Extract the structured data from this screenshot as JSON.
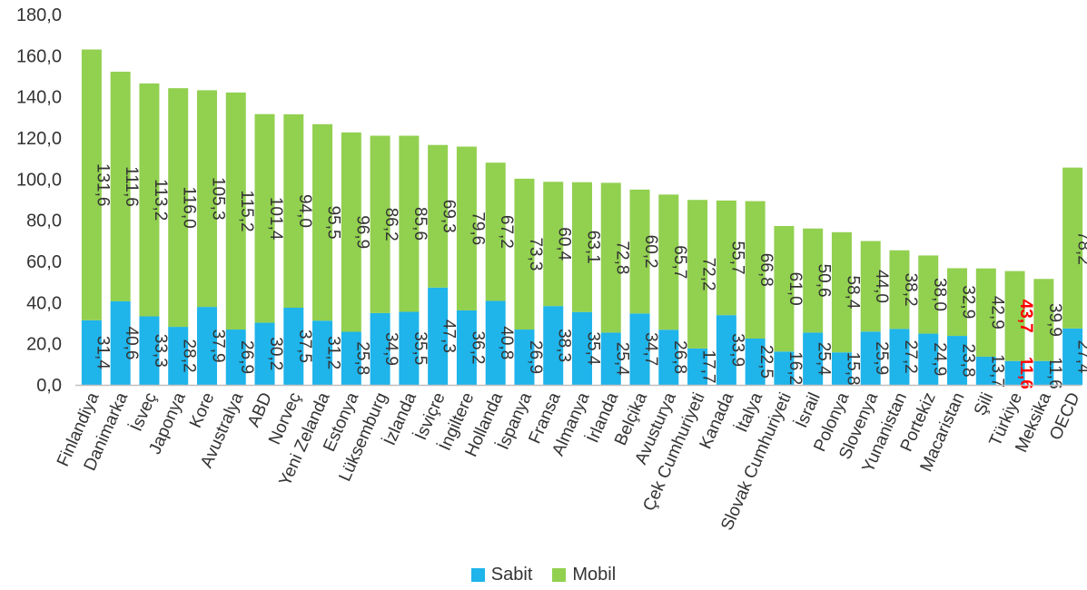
{
  "chart_data": {
    "type": "bar",
    "stacked": true,
    "title": "",
    "xlabel": "",
    "ylabel": "",
    "ylim": [
      0,
      180
    ],
    "yticks": [
      "0,0",
      "20,0",
      "40,0",
      "60,0",
      "80,0",
      "100,0",
      "120,0",
      "140,0",
      "160,0",
      "180,0"
    ],
    "grid": false,
    "legend_position": "bottom",
    "categories": [
      "Finlandiya",
      "Danimarka",
      "İsveç",
      "Japonya",
      "Kore",
      "Avustralya",
      "ABD",
      "Norveç",
      "Yeni Zelanda",
      "Estonya",
      "Lüksemburg",
      "İzlanda",
      "İsviçre",
      "İngiltere",
      "Hollanda",
      "İspanya",
      "Fransa",
      "Almanya",
      "İrlanda",
      "Belçika",
      "Avusturya",
      "Çek Cumhuriyeti",
      "Kanada",
      "İtalya",
      "Slovak Cumhuriyeti",
      "İsrail",
      "Polonya",
      "Slovenya",
      "Yunanistan",
      "Portekiz",
      "Macaristan",
      "Şili",
      "Türkiye",
      "Meksika",
      "OECD"
    ],
    "series": [
      {
        "name": "Sabit",
        "color": "#1fb4ea",
        "values": [
          31.4,
          40.6,
          33.3,
          28.2,
          37.9,
          26.9,
          30.2,
          37.5,
          31.2,
          25.8,
          34.9,
          35.5,
          47.3,
          36.2,
          40.8,
          26.9,
          38.3,
          35.4,
          25.4,
          34.7,
          26.8,
          17.7,
          33.9,
          22.5,
          16.2,
          25.4,
          15.8,
          25.9,
          27.2,
          24.9,
          23.8,
          13.7,
          11.6,
          11.6,
          27.4
        ],
        "labels": [
          "31,4",
          "40,6",
          "33,3",
          "28,2",
          "37,9",
          "26,9",
          "30,2",
          "37,5",
          "31,2",
          "25,8",
          "34,9",
          "35,5",
          "47,3",
          "36,2",
          "40,8",
          "26,9",
          "38,3",
          "35,4",
          "25,4",
          "34,7",
          "26,8",
          "17,7",
          "33,9",
          "22,5",
          "16,2",
          "25,4",
          "15,8",
          "25,9",
          "27,2",
          "24,9",
          "23,8",
          "13,7",
          "11,6",
          "11,6",
          "27,4"
        ]
      },
      {
        "name": "Mobil",
        "color": "#92d050",
        "values": [
          131.6,
          111.6,
          113.2,
          116.0,
          105.3,
          115.2,
          101.4,
          94.0,
          95.5,
          96.9,
          86.2,
          85.6,
          69.3,
          79.6,
          67.2,
          73.3,
          60.4,
          63.1,
          72.8,
          60.2,
          65.7,
          72.2,
          55.7,
          66.8,
          61.0,
          50.6,
          58.4,
          44.0,
          38.2,
          38.0,
          32.9,
          42.9,
          43.7,
          39.9,
          78.2
        ],
        "labels": [
          "131,6",
          "111,6",
          "113,2",
          "116,0",
          "105,3",
          "115,2",
          "101,4",
          "94,0",
          "95,5",
          "96,9",
          "86,2",
          "85,6",
          "69,3",
          "79,6",
          "67,2",
          "73,3",
          "60,4",
          "63,1",
          "72,8",
          "60,2",
          "65,7",
          "72,2",
          "55,7",
          "66,8",
          "61,0",
          "50,6",
          "58,4",
          "44,0",
          "38,2",
          "38,0",
          "32,9",
          "42,9",
          "43,7",
          "39,9",
          "78,2"
        ]
      }
    ],
    "highlight": {
      "category": "Türkiye",
      "label_color": "#ff0000"
    },
    "label_color": "#333333",
    "axis_color": "#bfbfbf"
  }
}
